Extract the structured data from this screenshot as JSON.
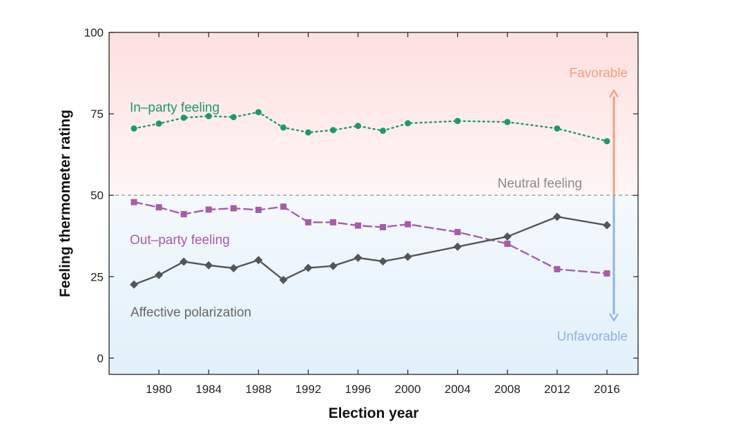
{
  "chart_data": {
    "type": "line",
    "xlabel": "Election year",
    "ylabel": "Feeling thermometer rating",
    "xlim": [
      1976,
      2018.5
    ],
    "ylim": [
      -5,
      100
    ],
    "x_ticks": [
      1980,
      1984,
      1988,
      1992,
      1996,
      2000,
      2004,
      2008,
      2012,
      2016
    ],
    "y_ticks": [
      0,
      25,
      50,
      75,
      100
    ],
    "series": [
      {
        "name": "In–party feeling",
        "color": "#1a9a6a",
        "style": "dotted",
        "marker": "circle",
        "x": [
          1978,
          1980,
          1982,
          1984,
          1986,
          1988,
          1990,
          1992,
          1994,
          1996,
          1998,
          2000,
          2004,
          2008,
          2012,
          2016
        ],
        "y": [
          70.5,
          72,
          73.8,
          74.3,
          74,
          75.5,
          70.8,
          69.3,
          70,
          71.3,
          69.8,
          72.1,
          72.8,
          72.5,
          70.5,
          66.6
        ]
      },
      {
        "name": "Out–party feeling",
        "color": "#a85aaa",
        "style": "dashed",
        "marker": "square",
        "x": [
          1978,
          1980,
          1982,
          1984,
          1986,
          1988,
          1990,
          1992,
          1994,
          1996,
          1998,
          2000,
          2004,
          2008,
          2012,
          2016
        ],
        "y": [
          47.9,
          46.3,
          44.2,
          45.6,
          46,
          45.5,
          46.5,
          41.7,
          41.7,
          40.7,
          40.2,
          41.1,
          38.7,
          35.1,
          27.3,
          26
        ]
      },
      {
        "name": "Affective polarization",
        "color": "#555555",
        "style": "solid",
        "marker": "diamond",
        "x": [
          1978,
          1980,
          1982,
          1984,
          1986,
          1988,
          1990,
          1992,
          1994,
          1996,
          1998,
          2000,
          2004,
          2008,
          2012,
          2016
        ],
        "y": [
          22.6,
          25.5,
          29.6,
          28.5,
          27.6,
          30.1,
          24,
          27.7,
          28.3,
          30.8,
          29.7,
          31.1,
          34.2,
          37.3,
          43.4,
          40.8
        ]
      }
    ],
    "reference_line": {
      "value": 50,
      "label": "Neutral feeling",
      "color": "#999999"
    },
    "annotations": {
      "favorable": {
        "text": "Favorable",
        "color": "#f1a07e"
      },
      "unfavorable": {
        "text": "Unfavorable",
        "color": "#8eb4dc"
      }
    },
    "background": {
      "upper_color": "#fde0df",
      "lower_color": "#e1f0fa"
    }
  }
}
